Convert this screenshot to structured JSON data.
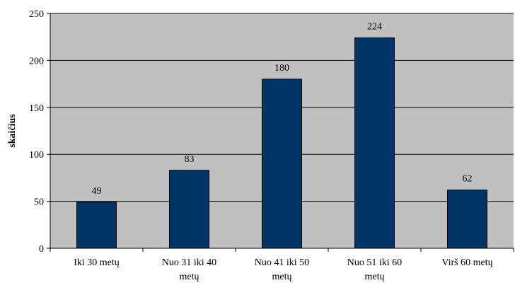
{
  "chart_data": {
    "type": "bar",
    "categories": [
      [
        "Iki 30 metų"
      ],
      [
        "Nuo 31 iki 40",
        "metų"
      ],
      [
        "Nuo 41 iki 50",
        "metų"
      ],
      [
        "Nuo 51 iki 60",
        "metų"
      ],
      [
        "Virš 60 metų"
      ]
    ],
    "values": [
      49,
      83,
      180,
      224,
      62
    ],
    "data_labels": [
      "49",
      "83",
      "180",
      "224",
      "62"
    ],
    "ylabel": "skaičius",
    "xlabel": "",
    "title": "",
    "ylim": [
      0,
      250
    ],
    "yticks": [
      0,
      50,
      100,
      150,
      200,
      250
    ],
    "grid": true,
    "legend": "none",
    "colors": {
      "bar": "#003366",
      "plot_background": "#c0c0c0",
      "gridline": "#000000"
    }
  }
}
